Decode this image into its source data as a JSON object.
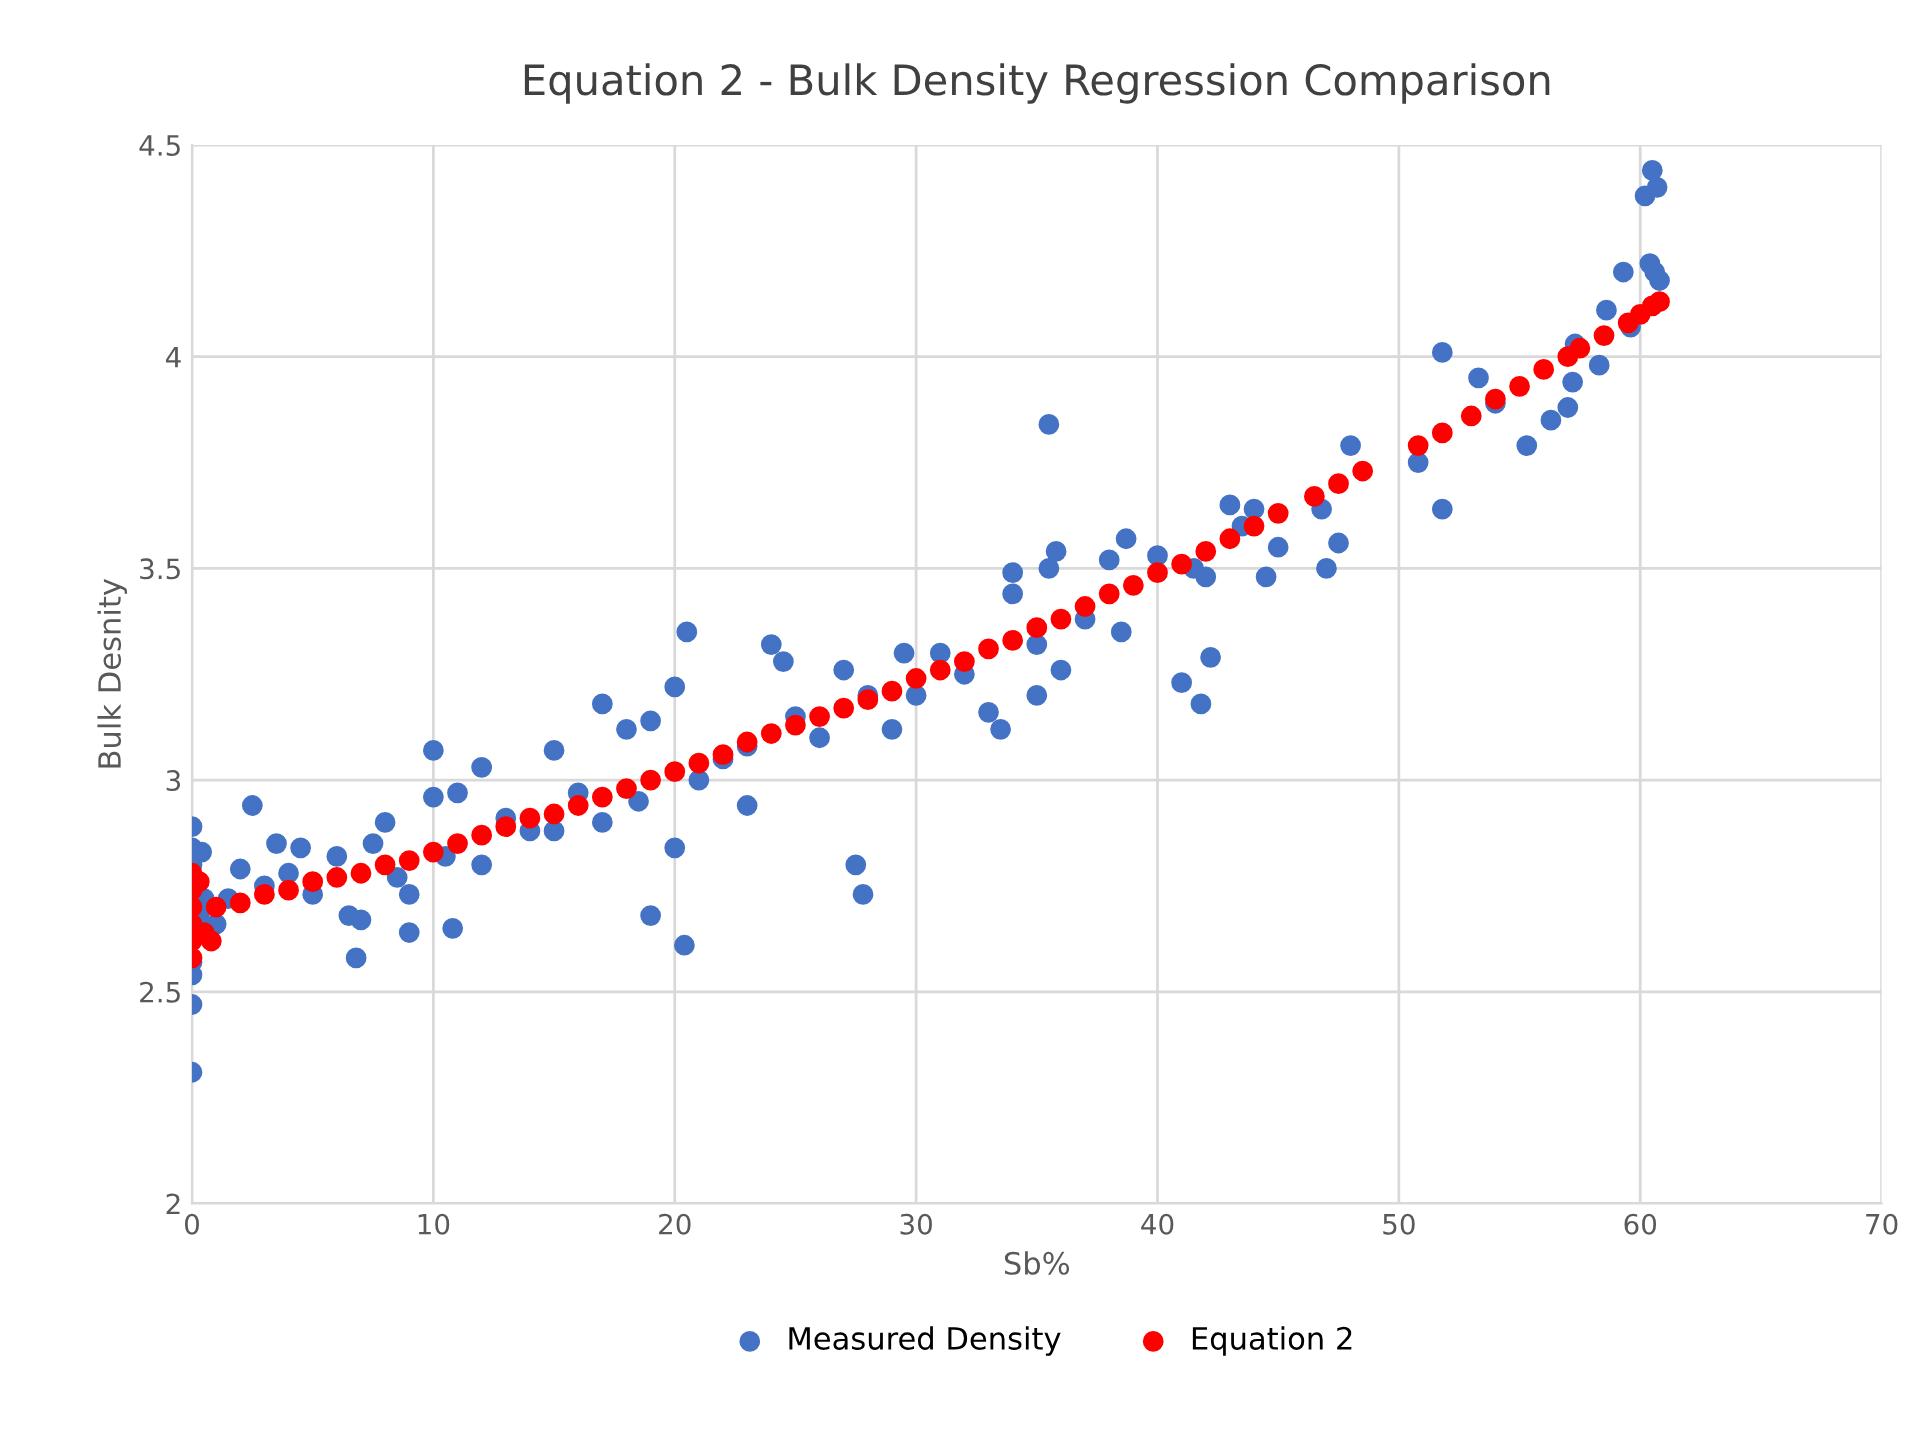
{
  "chart_data": {
    "type": "scatter",
    "title": "Equation 2 - Bulk Density Regression Comparison",
    "xlabel": "Sb%",
    "ylabel": "Bulk Desnity",
    "xlim": [
      0,
      70
    ],
    "xticks": [
      0,
      10,
      20,
      30,
      40,
      50,
      60,
      70
    ],
    "ylim": [
      2,
      4.5
    ],
    "yticks": [
      2,
      {
        "value": 2.5,
        "label": "2.5"
      },
      3,
      {
        "value": 3.5,
        "label": "3.5"
      },
      4,
      {
        "value": 4.5,
        "label": "4.5"
      }
    ],
    "grid": true,
    "legend": "bottom",
    "marker": "circle",
    "series": [
      {
        "name": "Measured Density",
        "color": "#4472c4",
        "x": [
          0,
          0,
          0,
          0,
          0,
          0,
          0,
          0.4,
          0.3,
          0.5,
          1,
          1.5,
          2,
          2.5,
          3,
          3.5,
          4,
          4.5,
          5,
          6,
          6.5,
          6.8,
          7,
          7.5,
          8,
          8.5,
          9,
          9,
          10,
          10,
          10.5,
          10.8,
          11,
          12,
          12,
          13,
          14,
          15,
          15,
          16,
          17,
          17,
          18,
          18.5,
          19,
          19,
          20,
          20,
          20.5,
          20.4,
          21,
          22,
          23,
          23,
          24,
          24.5,
          25,
          26,
          27,
          27.5,
          27.8,
          28,
          29,
          29.5,
          30,
          31,
          32,
          33,
          33.5,
          34,
          34,
          35,
          35,
          35.5,
          35.8,
          35.5,
          36,
          37,
          38,
          38.5,
          38.7,
          40,
          41,
          41.5,
          41.8,
          42.2,
          42,
          43,
          43.5,
          44,
          44.5,
          45,
          46.8,
          47,
          47.5,
          48,
          50.8,
          51.8,
          51.8,
          53.3,
          54,
          55.3,
          56.3,
          57,
          57.2,
          57.3,
          58.3,
          58.6,
          59.3,
          59.6,
          60.2,
          60.4,
          60.5,
          60.7,
          60.6,
          60.8
        ],
        "values": [
          2.31,
          2.47,
          2.54,
          2.57,
          2.89,
          2.84,
          2.8,
          2.83,
          2.68,
          2.72,
          2.66,
          2.72,
          2.79,
          2.94,
          2.75,
          2.85,
          2.78,
          2.84,
          2.73,
          2.82,
          2.68,
          2.58,
          2.67,
          2.85,
          2.9,
          2.77,
          2.73,
          2.64,
          3.07,
          2.96,
          2.82,
          2.65,
          2.97,
          3.03,
          2.8,
          2.91,
          2.88,
          3.07,
          2.88,
          2.97,
          3.18,
          2.9,
          3.12,
          2.95,
          3.14,
          2.68,
          3.22,
          2.84,
          3.35,
          2.61,
          3.0,
          3.05,
          3.08,
          2.94,
          3.32,
          3.28,
          3.15,
          3.1,
          3.26,
          2.8,
          2.73,
          3.2,
          3.12,
          3.3,
          3.2,
          3.3,
          3.25,
          3.16,
          3.12,
          3.49,
          3.44,
          3.32,
          3.2,
          3.84,
          3.54,
          3.5,
          3.26,
          3.38,
          3.52,
          3.35,
          3.57,
          3.53,
          3.23,
          3.5,
          3.18,
          3.29,
          3.48,
          3.65,
          3.6,
          3.64,
          3.48,
          3.55,
          3.64,
          3.5,
          3.56,
          3.79,
          3.75,
          4.01,
          3.64,
          3.95,
          3.89,
          3.79,
          3.85,
          3.88,
          3.94,
          4.03,
          3.98,
          4.11,
          4.2,
          4.07,
          4.38,
          4.22,
          4.44,
          4.4,
          4.2,
          4.18
        ]
      },
      {
        "name": "Equation 2",
        "color": "#ff0000",
        "x": [
          0,
          0,
          0,
          0,
          0,
          0,
          0.3,
          0.5,
          0.8,
          1,
          2,
          3,
          4,
          5,
          6,
          7,
          8,
          9,
          10,
          11,
          12,
          13,
          14,
          15,
          16,
          17,
          18,
          19,
          20,
          21,
          22,
          23,
          24,
          25,
          26,
          27,
          28,
          29,
          30,
          31,
          32,
          33,
          34,
          35,
          36,
          37,
          38,
          39,
          40,
          41,
          42,
          43,
          44,
          45,
          46.5,
          47.5,
          48.5,
          50.8,
          51.8,
          53,
          54,
          55,
          56,
          57,
          57.5,
          58.5,
          59.5,
          60,
          60.5,
          60.8
        ],
        "values": [
          2.58,
          2.62,
          2.66,
          2.7,
          2.74,
          2.78,
          2.76,
          2.64,
          2.62,
          2.7,
          2.71,
          2.73,
          2.74,
          2.76,
          2.77,
          2.78,
          2.8,
          2.81,
          2.83,
          2.85,
          2.87,
          2.89,
          2.91,
          2.92,
          2.94,
          2.96,
          2.98,
          3.0,
          3.02,
          3.04,
          3.06,
          3.09,
          3.11,
          3.13,
          3.15,
          3.17,
          3.19,
          3.21,
          3.24,
          3.26,
          3.28,
          3.31,
          3.33,
          3.36,
          3.38,
          3.41,
          3.44,
          3.46,
          3.49,
          3.51,
          3.54,
          3.57,
          3.6,
          3.63,
          3.67,
          3.7,
          3.73,
          3.79,
          3.82,
          3.86,
          3.9,
          3.93,
          3.97,
          4.0,
          4.02,
          4.05,
          4.08,
          4.1,
          4.12,
          4.13
        ]
      }
    ]
  }
}
